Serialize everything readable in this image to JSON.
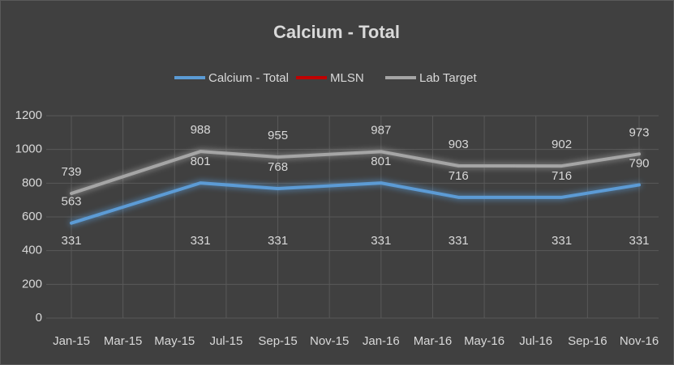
{
  "chart_data": {
    "type": "line",
    "title": "Calcium - Total",
    "x": [
      "2015-01",
      "2015-06",
      "2015-09",
      "2016-01",
      "2016-04",
      "2016-08",
      "2016-11"
    ],
    "series": [
      {
        "name": "Calcium - Total",
        "color": "#5b9bd5",
        "values": [
          563,
          801,
          768,
          801,
          716,
          716,
          790
        ]
      },
      {
        "name": "MLSN",
        "color": "#c00000",
        "values": [
          331,
          331,
          331,
          331,
          331,
          331,
          331
        ]
      },
      {
        "name": "Lab Target",
        "color": "#a5a5a5",
        "values": [
          739,
          988,
          955,
          987,
          903,
          902,
          973
        ]
      }
    ],
    "xlim": [
      "2015-01",
      "2016-11"
    ],
    "xticks": [
      {
        "value": "2015-01",
        "label": "Jan-15"
      },
      {
        "value": "2015-03",
        "label": "Mar-15"
      },
      {
        "value": "2015-05",
        "label": "May-15"
      },
      {
        "value": "2015-07",
        "label": "Jul-15"
      },
      {
        "value": "2015-09",
        "label": "Sep-15"
      },
      {
        "value": "2015-11",
        "label": "Nov-15"
      },
      {
        "value": "2016-01",
        "label": "Jan-16"
      },
      {
        "value": "2016-03",
        "label": "Mar-16"
      },
      {
        "value": "2016-05",
        "label": "May-16"
      },
      {
        "value": "2016-07",
        "label": "Jul-16"
      },
      {
        "value": "2016-09",
        "label": "Sep-16"
      },
      {
        "value": "2016-11",
        "label": "Nov-16"
      }
    ],
    "ylim": [
      0,
      1200
    ],
    "yticks": [
      0,
      200,
      400,
      600,
      800,
      1000,
      1200
    ],
    "grid": true,
    "legend": "top",
    "data_labels": true
  }
}
